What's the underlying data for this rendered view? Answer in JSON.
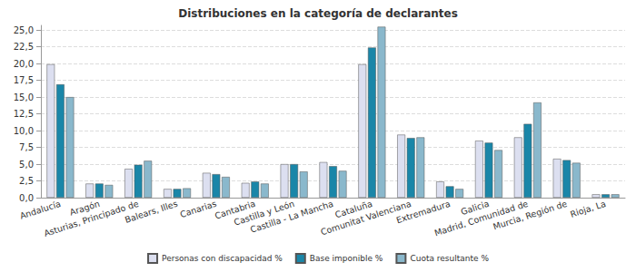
{
  "chart_data": {
    "type": "bar",
    "title": "Distribuciones en la categoría de declarantes",
    "categories": [
      "Andalucía",
      "Aragón",
      "Asturias, Principado de",
      "Balears, Illes",
      "Canarias",
      "Cantabria",
      "Castilla y León",
      "Castilla - La Mancha",
      "Cataluña",
      "Comunitat Valenciana",
      "Extremadura",
      "Galicia",
      "Madrid, Comunidad de",
      "Murcia, Región de",
      "Rioja, La"
    ],
    "series": [
      {
        "name": "Personas con discapacidad %",
        "color": "#dcdff0",
        "values": [
          19.9,
          2.1,
          4.3,
          1.3,
          3.7,
          2.2,
          5.0,
          5.3,
          19.9,
          9.4,
          2.4,
          8.5,
          9.0,
          5.8,
          0.5
        ]
      },
      {
        "name": "Base imponible %",
        "color": "#1a86a8",
        "values": [
          16.9,
          2.1,
          4.9,
          1.3,
          3.5,
          2.4,
          5.0,
          4.7,
          22.4,
          8.9,
          1.7,
          8.2,
          11.0,
          5.6,
          0.5
        ]
      },
      {
        "name": "Cuota resultante %",
        "color": "#8ab8cc",
        "values": [
          15.0,
          1.9,
          5.5,
          1.4,
          3.1,
          2.1,
          3.9,
          4.0,
          25.5,
          9.0,
          1.3,
          7.1,
          14.2,
          5.2,
          0.5
        ]
      }
    ],
    "ylim": [
      0,
      25.7
    ],
    "yticks": [
      {
        "value": 0,
        "label": "0,0"
      },
      {
        "value": 2.5,
        "label": "2,5"
      },
      {
        "value": 5,
        "label": "5,0"
      },
      {
        "value": 7.5,
        "label": "7,5"
      },
      {
        "value": 10,
        "label": "10,0"
      },
      {
        "value": 12.5,
        "label": "12,5"
      },
      {
        "value": 15,
        "label": "15,0"
      },
      {
        "value": 17.5,
        "label": "17,5"
      },
      {
        "value": 20,
        "label": "20,0"
      },
      {
        "value": 22.5,
        "label": "22,5"
      },
      {
        "value": 25,
        "label": "25,0"
      }
    ],
    "grid": true,
    "legend": "bottom"
  }
}
